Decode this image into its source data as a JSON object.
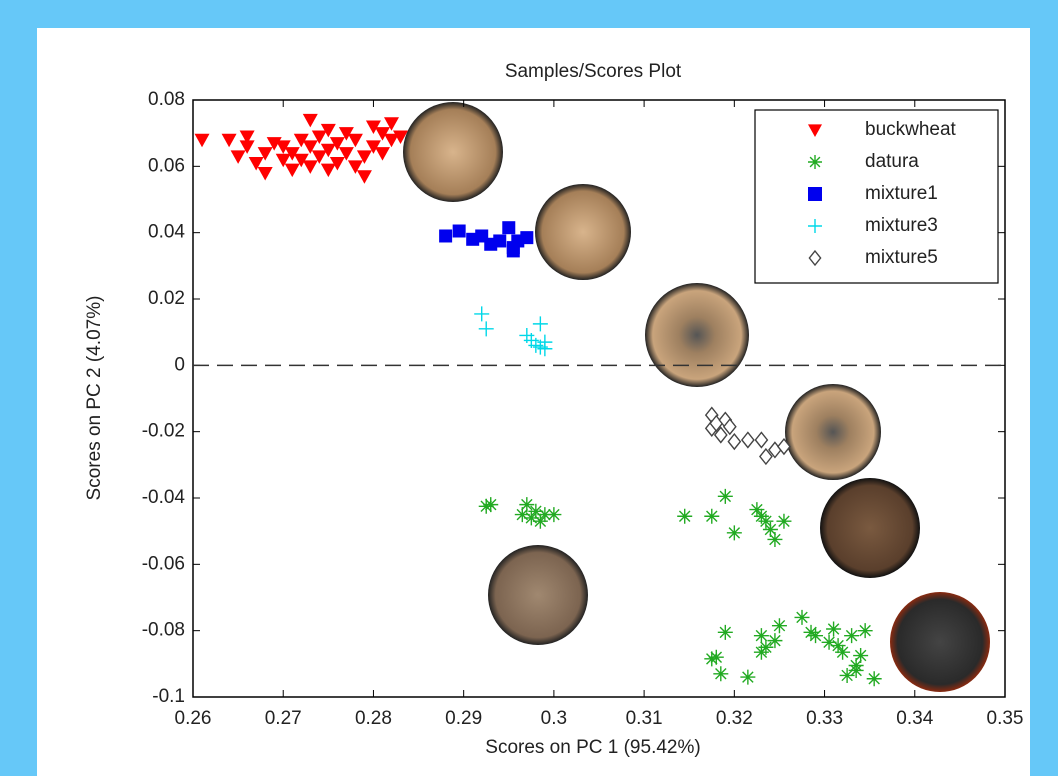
{
  "chart_data": {
    "type": "scatter",
    "title": "Samples/Scores Plot",
    "x_label": "Scores on PC 1 (95.42%)",
    "y_label": "Scores on PC 2 (4.07%)",
    "xlim": [
      0.26,
      0.35
    ],
    "xticks": [
      0.26,
      0.27,
      0.28,
      0.29,
      0.3,
      0.31,
      0.32,
      0.33,
      0.34,
      0.35
    ],
    "ylim": [
      -0.1,
      0.08
    ],
    "yticks": [
      -0.1,
      -0.08,
      -0.06,
      -0.04,
      -0.02,
      0,
      0.02,
      0.04,
      0.06,
      0.08
    ],
    "reference_line": {
      "y": 0,
      "style": "dashed"
    },
    "legend": "upper right",
    "series": [
      {
        "name": "buckwheat",
        "color": "#ff0000",
        "marker": "triangle-down",
        "x": [
          0.261,
          0.264,
          0.265,
          0.266,
          0.267,
          0.268,
          0.268,
          0.269,
          0.27,
          0.27,
          0.271,
          0.271,
          0.272,
          0.272,
          0.273,
          0.273,
          0.273,
          0.274,
          0.274,
          0.275,
          0.275,
          0.275,
          0.276,
          0.276,
          0.277,
          0.278,
          0.278,
          0.279,
          0.279,
          0.28,
          0.28,
          0.281,
          0.281,
          0.282,
          0.282,
          0.283,
          0.277,
          0.266
        ],
        "values": [
          0.068,
          0.068,
          0.063,
          0.066,
          0.061,
          0.064,
          0.058,
          0.067,
          0.062,
          0.066,
          0.059,
          0.064,
          0.068,
          0.062,
          0.074,
          0.066,
          0.06,
          0.069,
          0.063,
          0.071,
          0.065,
          0.059,
          0.067,
          0.061,
          0.064,
          0.06,
          0.068,
          0.063,
          0.057,
          0.066,
          0.072,
          0.064,
          0.07,
          0.068,
          0.073,
          0.069,
          0.07,
          0.069
        ]
      },
      {
        "name": "datura",
        "color": "#22aa22",
        "marker": "asterisk",
        "x": [
          0.2925,
          0.293,
          0.2965,
          0.297,
          0.2975,
          0.298,
          0.2985,
          0.299,
          0.3,
          0.3145,
          0.3175,
          0.319,
          0.32,
          0.3225,
          0.323,
          0.3235,
          0.324,
          0.3245,
          0.3255,
          0.3175,
          0.318,
          0.3185,
          0.319,
          0.3215,
          0.323,
          0.323,
          0.3235,
          0.3245,
          0.325,
          0.3275,
          0.3285,
          0.329,
          0.3305,
          0.331,
          0.3315,
          0.332,
          0.3325,
          0.333,
          0.3335,
          0.334,
          0.3345,
          0.3355,
          0.3335
        ],
        "values": [
          -0.0425,
          -0.042,
          -0.045,
          -0.042,
          -0.046,
          -0.044,
          -0.047,
          -0.045,
          -0.045,
          -0.0455,
          -0.0455,
          -0.0395,
          -0.0505,
          -0.0435,
          -0.0455,
          -0.047,
          -0.0495,
          -0.0525,
          -0.047,
          -0.0885,
          -0.088,
          -0.093,
          -0.0805,
          -0.094,
          -0.0815,
          -0.0865,
          -0.085,
          -0.083,
          -0.0785,
          -0.076,
          -0.0805,
          -0.0815,
          -0.0835,
          -0.0795,
          -0.0845,
          -0.0865,
          -0.0935,
          -0.0815,
          -0.0905,
          -0.0875,
          -0.08,
          -0.0945,
          -0.092
        ]
      },
      {
        "name": "mixture1",
        "color": "#0000ee",
        "marker": "square",
        "x": [
          0.288,
          0.2895,
          0.291,
          0.292,
          0.293,
          0.294,
          0.295,
          0.2955,
          0.296,
          0.297,
          0.2955
        ],
        "values": [
          0.039,
          0.0405,
          0.038,
          0.039,
          0.0365,
          0.0375,
          0.0415,
          0.0355,
          0.0375,
          0.0385,
          0.0345
        ]
      },
      {
        "name": "mixture3",
        "color": "#00d8e8",
        "marker": "plus",
        "x": [
          0.292,
          0.2925,
          0.297,
          0.2975,
          0.2985,
          0.2985,
          0.299,
          0.299,
          0.298
        ],
        "values": [
          0.0155,
          0.011,
          0.009,
          0.0075,
          0.0125,
          0.0055,
          0.007,
          0.005,
          0.006
        ]
      },
      {
        "name": "mixture5",
        "color": "#444444",
        "marker": "diamond-open",
        "x": [
          0.3175,
          0.3175,
          0.318,
          0.3185,
          0.319,
          0.3195,
          0.32,
          0.3215,
          0.323,
          0.3235,
          0.3245,
          0.3255
        ],
        "values": [
          -0.015,
          -0.019,
          -0.0175,
          -0.021,
          -0.0165,
          -0.0185,
          -0.023,
          -0.0225,
          -0.0225,
          -0.0275,
          -0.0255,
          -0.0245
        ]
      }
    ]
  }
}
